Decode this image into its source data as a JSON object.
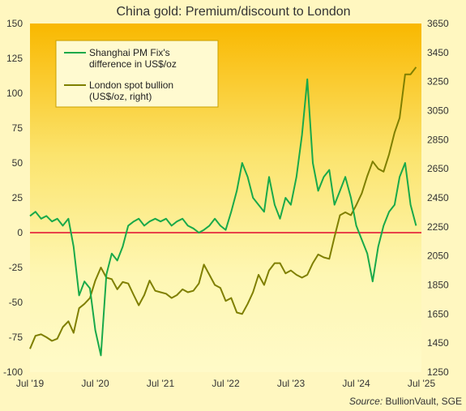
{
  "chart_data": {
    "type": "line",
    "title": "China gold: Premium/discount  to London",
    "source_label": "Source:",
    "source_text": " BullionVault, SGE",
    "x_ticks": [
      "Jul '19",
      "Jul '20",
      "Jul '21",
      "Jul '22",
      "Jul '23",
      "Jul '24",
      "Jul '25"
    ],
    "left_axis": {
      "ticks": [
        "150",
        "125",
        "100",
        "75",
        "50",
        "25",
        "0",
        "-25",
        "-50",
        "-75",
        "-100"
      ],
      "range": [
        -100,
        150
      ]
    },
    "right_axis": {
      "ticks": [
        "3650",
        "3450",
        "3250",
        "3050",
        "2850",
        "2650",
        "2450",
        "2250",
        "2050",
        "1850",
        "1650",
        "1450",
        "1250"
      ],
      "range": [
        1250,
        3650
      ]
    },
    "reference_line": {
      "value": 0,
      "color": "#e8434a"
    },
    "series": [
      {
        "name": "Shanghai PM Fix's difference in US$/oz",
        "axis": "left",
        "color": "#19a94a",
        "points": [
          [
            "2019-07-01",
            12
          ],
          [
            "2019-08-01",
            15
          ],
          [
            "2019-09-01",
            10
          ],
          [
            "2019-10-01",
            12
          ],
          [
            "2019-11-01",
            8
          ],
          [
            "2019-12-01",
            10
          ],
          [
            "2020-01-01",
            5
          ],
          [
            "2020-02-01",
            10
          ],
          [
            "2020-03-01",
            -10
          ],
          [
            "2020-04-01",
            -45
          ],
          [
            "2020-05-01",
            -35
          ],
          [
            "2020-06-01",
            -40
          ],
          [
            "2020-07-01",
            -70
          ],
          [
            "2020-08-01",
            -88
          ],
          [
            "2020-09-01",
            -30
          ],
          [
            "2020-10-01",
            -15
          ],
          [
            "2020-11-01",
            -20
          ],
          [
            "2020-12-01",
            -10
          ],
          [
            "2021-01-01",
            5
          ],
          [
            "2021-02-01",
            8
          ],
          [
            "2021-03-01",
            10
          ],
          [
            "2021-04-01",
            5
          ],
          [
            "2021-05-01",
            8
          ],
          [
            "2021-06-01",
            10
          ],
          [
            "2021-07-01",
            8
          ],
          [
            "2021-08-01",
            10
          ],
          [
            "2021-09-01",
            5
          ],
          [
            "2021-10-01",
            8
          ],
          [
            "2021-11-01",
            10
          ],
          [
            "2021-12-01",
            5
          ],
          [
            "2022-01-01",
            3
          ],
          [
            "2022-02-01",
            0
          ],
          [
            "2022-03-01",
            2
          ],
          [
            "2022-04-01",
            5
          ],
          [
            "2022-05-01",
            10
          ],
          [
            "2022-06-01",
            5
          ],
          [
            "2022-07-01",
            2
          ],
          [
            "2022-08-01",
            15
          ],
          [
            "2022-09-01",
            30
          ],
          [
            "2022-10-01",
            50
          ],
          [
            "2022-11-01",
            40
          ],
          [
            "2022-12-01",
            25
          ],
          [
            "2023-01-01",
            20
          ],
          [
            "2023-02-01",
            15
          ],
          [
            "2023-03-01",
            40
          ],
          [
            "2023-04-01",
            20
          ],
          [
            "2023-05-01",
            10
          ],
          [
            "2023-06-01",
            25
          ],
          [
            "2023-07-01",
            20
          ],
          [
            "2023-08-01",
            40
          ],
          [
            "2023-09-01",
            70
          ],
          [
            "2023-10-01",
            110
          ],
          [
            "2023-11-01",
            50
          ],
          [
            "2023-12-01",
            30
          ],
          [
            "2024-01-01",
            40
          ],
          [
            "2024-02-01",
            45
          ],
          [
            "2024-03-01",
            20
          ],
          [
            "2024-04-01",
            30
          ],
          [
            "2024-05-01",
            40
          ],
          [
            "2024-06-01",
            25
          ],
          [
            "2024-07-01",
            5
          ],
          [
            "2024-08-01",
            -5
          ],
          [
            "2024-09-01",
            -15
          ],
          [
            "2024-10-01",
            -35
          ],
          [
            "2024-11-01",
            -10
          ],
          [
            "2024-12-01",
            5
          ],
          [
            "2025-01-01",
            15
          ],
          [
            "2025-02-01",
            20
          ],
          [
            "2025-03-01",
            40
          ],
          [
            "2025-04-01",
            50
          ],
          [
            "2025-05-01",
            20
          ],
          [
            "2025-06-01",
            5
          ]
        ]
      },
      {
        "name": "London spot bullion (US$/oz, right)",
        "axis": "right",
        "color": "#7f7f00",
        "points": [
          [
            "2019-07-01",
            1410
          ],
          [
            "2019-08-01",
            1500
          ],
          [
            "2019-09-01",
            1510
          ],
          [
            "2019-10-01",
            1490
          ],
          [
            "2019-11-01",
            1465
          ],
          [
            "2019-12-01",
            1480
          ],
          [
            "2020-01-01",
            1560
          ],
          [
            "2020-02-01",
            1600
          ],
          [
            "2020-03-01",
            1520
          ],
          [
            "2020-04-01",
            1690
          ],
          [
            "2020-05-01",
            1720
          ],
          [
            "2020-06-01",
            1760
          ],
          [
            "2020-07-01",
            1880
          ],
          [
            "2020-08-01",
            1970
          ],
          [
            "2020-09-01",
            1900
          ],
          [
            "2020-10-01",
            1890
          ],
          [
            "2020-11-01",
            1820
          ],
          [
            "2020-12-01",
            1870
          ],
          [
            "2021-01-01",
            1860
          ],
          [
            "2021-02-01",
            1780
          ],
          [
            "2021-03-01",
            1710
          ],
          [
            "2021-04-01",
            1780
          ],
          [
            "2021-05-01",
            1880
          ],
          [
            "2021-06-01",
            1810
          ],
          [
            "2021-07-01",
            1800
          ],
          [
            "2021-08-01",
            1790
          ],
          [
            "2021-09-01",
            1760
          ],
          [
            "2021-10-01",
            1780
          ],
          [
            "2021-11-01",
            1820
          ],
          [
            "2021-12-01",
            1800
          ],
          [
            "2022-01-01",
            1810
          ],
          [
            "2022-02-01",
            1860
          ],
          [
            "2022-03-01",
            1990
          ],
          [
            "2022-04-01",
            1920
          ],
          [
            "2022-05-01",
            1850
          ],
          [
            "2022-06-01",
            1830
          ],
          [
            "2022-07-01",
            1740
          ],
          [
            "2022-08-01",
            1760
          ],
          [
            "2022-09-01",
            1660
          ],
          [
            "2022-10-01",
            1650
          ],
          [
            "2022-11-01",
            1720
          ],
          [
            "2022-12-01",
            1800
          ],
          [
            "2023-01-01",
            1920
          ],
          [
            "2023-02-01",
            1850
          ],
          [
            "2023-03-01",
            1950
          ],
          [
            "2023-04-01",
            2000
          ],
          [
            "2023-05-01",
            2000
          ],
          [
            "2023-06-01",
            1930
          ],
          [
            "2023-07-01",
            1950
          ],
          [
            "2023-08-01",
            1920
          ],
          [
            "2023-09-01",
            1900
          ],
          [
            "2023-10-01",
            1920
          ],
          [
            "2023-11-01",
            2000
          ],
          [
            "2023-12-01",
            2060
          ],
          [
            "2024-01-01",
            2040
          ],
          [
            "2024-02-01",
            2030
          ],
          [
            "2024-03-01",
            2180
          ],
          [
            "2024-04-01",
            2330
          ],
          [
            "2024-05-01",
            2350
          ],
          [
            "2024-06-01",
            2330
          ],
          [
            "2024-07-01",
            2400
          ],
          [
            "2024-08-01",
            2480
          ],
          [
            "2024-09-01",
            2600
          ],
          [
            "2024-10-01",
            2700
          ],
          [
            "2024-11-01",
            2650
          ],
          [
            "2024-12-01",
            2630
          ],
          [
            "2025-01-01",
            2750
          ],
          [
            "2025-02-01",
            2900
          ],
          [
            "2025-03-01",
            3000
          ],
          [
            "2025-04-01",
            3300
          ],
          [
            "2025-05-01",
            3300
          ],
          [
            "2025-06-01",
            3350
          ]
        ]
      }
    ],
    "legend_placement": "top-left",
    "grid": false
  }
}
